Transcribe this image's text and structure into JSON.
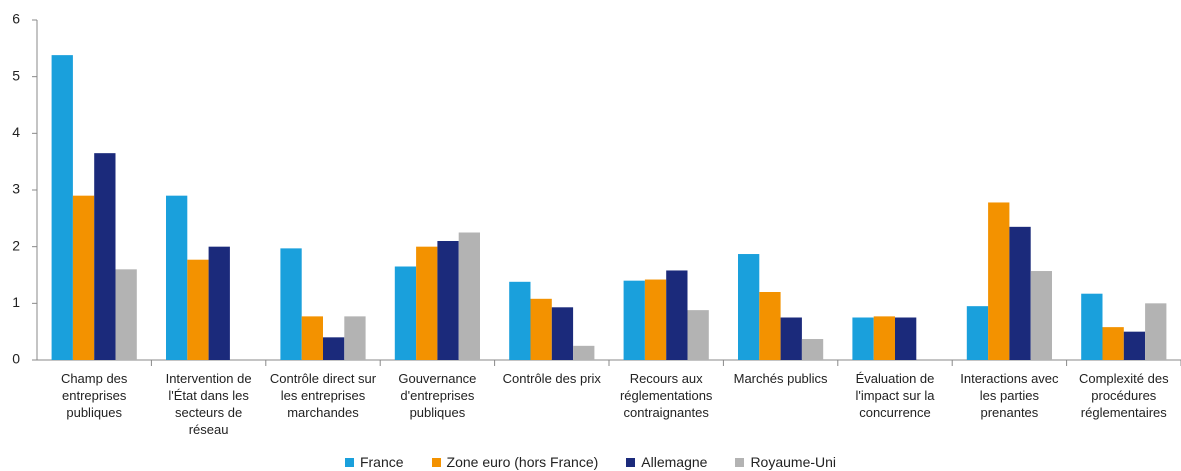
{
  "chart_data": {
    "type": "bar",
    "categories": [
      "Champ des entreprises publiques",
      "Intervention de l'État dans les secteurs de réseau",
      "Contrôle direct sur les entreprises marchandes",
      "Gouvernance d'entreprises publiques",
      "Contrôle des prix",
      "Recours aux réglementations contraignantes",
      "Marchés publics",
      "Évaluation de l'impact sur la concurrence",
      "Interactions avec les parties prenantes",
      "Complexité des procédures réglementaires"
    ],
    "series": [
      {
        "name": "France",
        "color": "#1aa0dc",
        "values": [
          5.38,
          2.9,
          1.97,
          1.65,
          1.38,
          1.4,
          1.87,
          0.75,
          0.95,
          1.17
        ]
      },
      {
        "name": "Zone euro (hors France)",
        "color": "#f39200",
        "values": [
          2.9,
          1.77,
          0.77,
          2.0,
          1.08,
          1.42,
          1.2,
          0.77,
          2.78,
          0.58
        ]
      },
      {
        "name": "Allemagne",
        "color": "#1b2a7b",
        "values": [
          3.65,
          2.0,
          0.4,
          2.1,
          0.93,
          1.58,
          0.75,
          0.75,
          2.35,
          0.5
        ]
      },
      {
        "name": "Royaume-Uni",
        "color": "#b3b3b3",
        "values": [
          1.6,
          null,
          0.77,
          2.25,
          0.25,
          0.88,
          0.37,
          null,
          1.57,
          1.0
        ]
      }
    ],
    "ylim": [
      0,
      6
    ],
    "yticks": [
      0,
      1,
      2,
      3,
      4,
      5,
      6
    ],
    "grid": false,
    "legend": "bottom"
  }
}
